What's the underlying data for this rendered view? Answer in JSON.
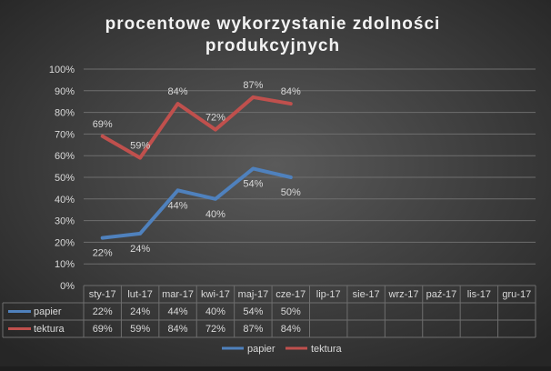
{
  "chart_data": {
    "type": "line",
    "title_line1": "procentowe wykorzystanie zdolności",
    "title_line2": "produkcyjnych",
    "categories": [
      "sty-17",
      "lut-17",
      "mar-17",
      "kwi-17",
      "maj-17",
      "cze-17",
      "lip-17",
      "sie-17",
      "wrz-17",
      "paź-17",
      "lis-17",
      "gru-17"
    ],
    "series": [
      {
        "name": "papier",
        "color": "#4f81bd",
        "values": [
          22,
          24,
          44,
          40,
          54,
          50,
          null,
          null,
          null,
          null,
          null,
          null
        ],
        "labels": [
          "22%",
          "24%",
          "44%",
          "40%",
          "54%",
          "50%",
          "",
          "",
          "",
          "",
          "",
          ""
        ],
        "label_pos": "below"
      },
      {
        "name": "tektura",
        "color": "#c0504d",
        "values": [
          69,
          59,
          84,
          72,
          87,
          84,
          null,
          null,
          null,
          null,
          null,
          null
        ],
        "labels": [
          "69%",
          "59%",
          "84%",
          "72%",
          "87%",
          "84%",
          "",
          "",
          "",
          "",
          "",
          ""
        ],
        "label_pos": "above"
      }
    ],
    "y_ticks": [
      "0%",
      "10%",
      "20%",
      "30%",
      "40%",
      "50%",
      "60%",
      "70%",
      "80%",
      "90%",
      "100%"
    ],
    "ylim": [
      0,
      100
    ],
    "grid": true,
    "legend": "bottom",
    "data_table": true
  }
}
